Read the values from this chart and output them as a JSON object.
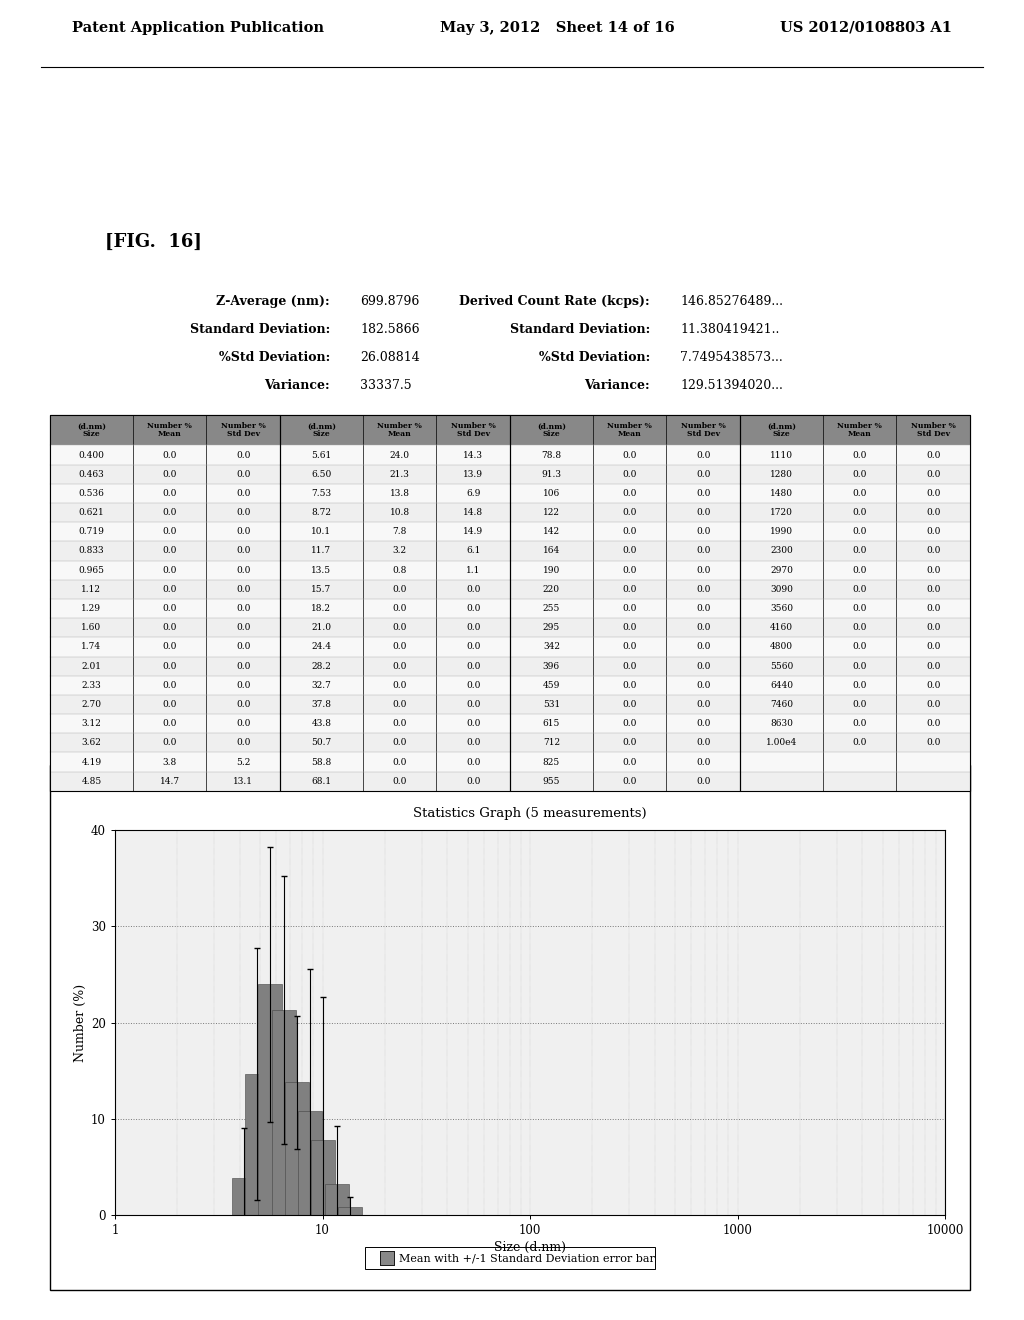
{
  "bg_color": "#ffffff",
  "header_left": "Patent Application Publication",
  "header_mid": "May 3, 2012   Sheet 14 of 16",
  "header_right": "US 2012/0108803 A1",
  "fig_label": "[FIG.  16]",
  "stats_left": [
    [
      "Z-Average (nm):",
      "699.8796"
    ],
    [
      "Standard Deviation:",
      "182.5866"
    ],
    [
      "%Std Deviation:",
      "26.08814"
    ],
    [
      "Variance:",
      "33337.5"
    ]
  ],
  "stats_right": [
    [
      "Derived Count Rate (kcps):",
      "146.85276489..."
    ],
    [
      "Standard Deviation:",
      "11.380419421.."
    ],
    [
      "%Std Deviation:",
      "7.7495438573..."
    ],
    [
      "Variance:",
      "129.51394020..."
    ]
  ],
  "table_col1": [
    [
      "0.400",
      "0.0",
      "0.0"
    ],
    [
      "0.463",
      "0.0",
      "0.0"
    ],
    [
      "0.536",
      "0.0",
      "0.0"
    ],
    [
      "0.621",
      "0.0",
      "0.0"
    ],
    [
      "0.719",
      "0.0",
      "0.0"
    ],
    [
      "0.833",
      "0.0",
      "0.0"
    ],
    [
      "0.965",
      "0.0",
      "0.0"
    ],
    [
      "1.12",
      "0.0",
      "0.0"
    ],
    [
      "1.29",
      "0.0",
      "0.0"
    ],
    [
      "1.60",
      "0.0",
      "0.0"
    ],
    [
      "1.74",
      "0.0",
      "0.0"
    ],
    [
      "2.01",
      "0.0",
      "0.0"
    ],
    [
      "2.33",
      "0.0",
      "0.0"
    ],
    [
      "2.70",
      "0.0",
      "0.0"
    ],
    [
      "3.12",
      "0.0",
      "0.0"
    ],
    [
      "3.62",
      "0.0",
      "0.0"
    ],
    [
      "4.19",
      "3.8",
      "5.2"
    ],
    [
      "4.85",
      "14.7",
      "13.1"
    ]
  ],
  "table_col2": [
    [
      "5.61",
      "24.0",
      "14.3"
    ],
    [
      "6.50",
      "21.3",
      "13.9"
    ],
    [
      "7.53",
      "13.8",
      "6.9"
    ],
    [
      "8.72",
      "10.8",
      "14.8"
    ],
    [
      "10.1",
      "7.8",
      "14.9"
    ],
    [
      "11.7",
      "3.2",
      "6.1"
    ],
    [
      "13.5",
      "0.8",
      "1.1"
    ],
    [
      "15.7",
      "0.0",
      "0.0"
    ],
    [
      "18.2",
      "0.0",
      "0.0"
    ],
    [
      "21.0",
      "0.0",
      "0.0"
    ],
    [
      "24.4",
      "0.0",
      "0.0"
    ],
    [
      "28.2",
      "0.0",
      "0.0"
    ],
    [
      "32.7",
      "0.0",
      "0.0"
    ],
    [
      "37.8",
      "0.0",
      "0.0"
    ],
    [
      "43.8",
      "0.0",
      "0.0"
    ],
    [
      "50.7",
      "0.0",
      "0.0"
    ],
    [
      "58.8",
      "0.0",
      "0.0"
    ],
    [
      "68.1",
      "0.0",
      "0.0"
    ]
  ],
  "table_col3": [
    [
      "78.8",
      "0.0",
      "0.0"
    ],
    [
      "91.3",
      "0.0",
      "0.0"
    ],
    [
      "106",
      "0.0",
      "0.0"
    ],
    [
      "122",
      "0.0",
      "0.0"
    ],
    [
      "142",
      "0.0",
      "0.0"
    ],
    [
      "164",
      "0.0",
      "0.0"
    ],
    [
      "190",
      "0.0",
      "0.0"
    ],
    [
      "220",
      "0.0",
      "0.0"
    ],
    [
      "255",
      "0.0",
      "0.0"
    ],
    [
      "295",
      "0.0",
      "0.0"
    ],
    [
      "342",
      "0.0",
      "0.0"
    ],
    [
      "396",
      "0.0",
      "0.0"
    ],
    [
      "459",
      "0.0",
      "0.0"
    ],
    [
      "531",
      "0.0",
      "0.0"
    ],
    [
      "615",
      "0.0",
      "0.0"
    ],
    [
      "712",
      "0.0",
      "0.0"
    ],
    [
      "825",
      "0.0",
      "0.0"
    ],
    [
      "955",
      "0.0",
      "0.0"
    ]
  ],
  "table_col4": [
    [
      "1110",
      "0.0",
      "0.0"
    ],
    [
      "1280",
      "0.0",
      "0.0"
    ],
    [
      "1480",
      "0.0",
      "0.0"
    ],
    [
      "1720",
      "0.0",
      "0.0"
    ],
    [
      "1990",
      "0.0",
      "0.0"
    ],
    [
      "2300",
      "0.0",
      "0.0"
    ],
    [
      "2970",
      "0.0",
      "0.0"
    ],
    [
      "3090",
      "0.0",
      "0.0"
    ],
    [
      "3560",
      "0.0",
      "0.0"
    ],
    [
      "4160",
      "0.0",
      "0.0"
    ],
    [
      "4800",
      "0.0",
      "0.0"
    ],
    [
      "5560",
      "0.0",
      "0.0"
    ],
    [
      "6440",
      "0.0",
      "0.0"
    ],
    [
      "7460",
      "0.0",
      "0.0"
    ],
    [
      "8630",
      "0.0",
      "0.0"
    ],
    [
      "1.00e4",
      "0.0",
      "0.0"
    ],
    [
      "",
      "",
      ""
    ],
    [
      "",
      "",
      ""
    ]
  ],
  "graph_title": "Statistics Graph (5 measurements)",
  "graph_xlabel": "Size (d.nm)",
  "graph_ylabel": "Number (%)",
  "graph_yticks": [
    0,
    10,
    20,
    30,
    40
  ],
  "graph_xticks_log": [
    1,
    10,
    100,
    1000,
    10000
  ],
  "bar_sizes": [
    4.19,
    4.85,
    5.61,
    6.5,
    7.53,
    8.72,
    10.1,
    11.7,
    13.5
  ],
  "bar_means": [
    3.8,
    14.7,
    24.0,
    21.3,
    13.8,
    10.8,
    7.8,
    3.2,
    0.8
  ],
  "bar_stdevs": [
    5.2,
    13.1,
    14.3,
    13.9,
    6.9,
    14.8,
    14.9,
    6.1,
    1.1
  ],
  "legend_text": "Mean with +/-1 Standard Deviation error bar",
  "legend_color": "#888888"
}
